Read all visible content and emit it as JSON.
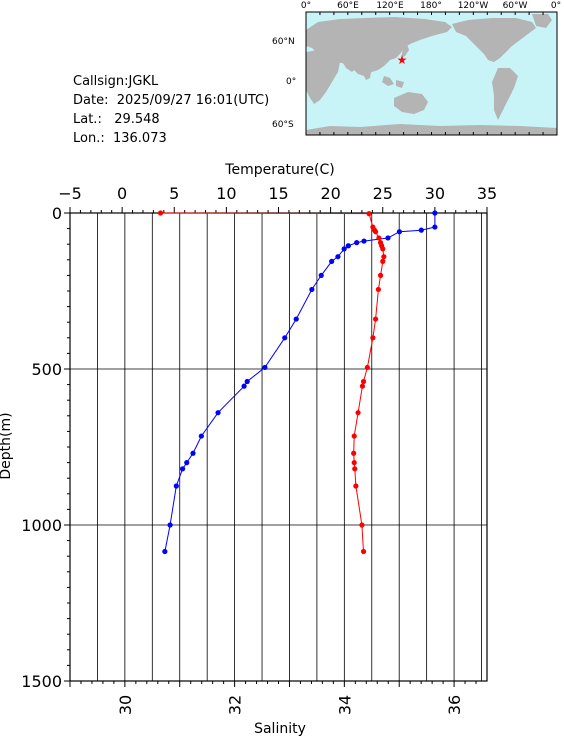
{
  "station": {
    "callsign": "Callsign:JGKL",
    "date": "Date:  2025/09/27 16:01(UTC)",
    "lat": "Lat.:   29.548",
    "lon": "Lon.:  136.073"
  },
  "map": {
    "lon_labels": [
      "0°",
      "60°E",
      "120°E",
      "180°",
      "120°W",
      "60°W",
      "0°"
    ],
    "lat_labels": [
      "60°N",
      "0°",
      "60°S"
    ],
    "ocean_color": "#c8f4f8",
    "land_color": "#b4b4b4",
    "marker_color": "#ff0000",
    "marker": {
      "lat": 29.548,
      "lon": 136.073
    }
  },
  "chart_data": {
    "type": "line",
    "title": "",
    "depth_axis": {
      "label": "Depth(m)",
      "range": [
        0,
        1500
      ],
      "ticks": [
        0,
        500,
        1000,
        1500
      ],
      "inverted": true
    },
    "temperature_axis": {
      "label": "Temperature(C)",
      "range": [
        -5,
        35
      ],
      "ticks": [
        -5,
        0,
        5,
        10,
        15,
        20,
        25,
        30,
        35
      ],
      "position": "top"
    },
    "salinity_axis": {
      "label": "Salinity",
      "range": [
        29,
        36.6
      ],
      "ticks": [
        30,
        32,
        34,
        36
      ],
      "position": "bottom"
    },
    "grid": true,
    "series": [
      {
        "variable": "temperature",
        "color": "#0000ff",
        "points": [
          {
            "depth": 0,
            "value": 30.0
          },
          {
            "depth": 45,
            "value": 30.0
          },
          {
            "depth": 55,
            "value": 28.7
          },
          {
            "depth": 60,
            "value": 26.6
          },
          {
            "depth": 80,
            "value": 25.5
          },
          {
            "depth": 90,
            "value": 23.2
          },
          {
            "depth": 95,
            "value": 22.5
          },
          {
            "depth": 105,
            "value": 21.7
          },
          {
            "depth": 115,
            "value": 21.3
          },
          {
            "depth": 140,
            "value": 20.7
          },
          {
            "depth": 155,
            "value": 20.1
          },
          {
            "depth": 200,
            "value": 19.1
          },
          {
            "depth": 245,
            "value": 18.2
          },
          {
            "depth": 340,
            "value": 16.7
          },
          {
            "depth": 400,
            "value": 15.6
          },
          {
            "depth": 495,
            "value": 13.7
          },
          {
            "depth": 540,
            "value": 12.0
          },
          {
            "depth": 555,
            "value": 11.7
          },
          {
            "depth": 640,
            "value": 9.2
          },
          {
            "depth": 715,
            "value": 7.6
          },
          {
            "depth": 770,
            "value": 6.8
          },
          {
            "depth": 800,
            "value": 6.2
          },
          {
            "depth": 820,
            "value": 5.8
          },
          {
            "depth": 875,
            "value": 5.2
          },
          {
            "depth": 1000,
            "value": 4.6
          },
          {
            "depth": 1085,
            "value": 4.1
          }
        ]
      },
      {
        "variable": "salinity",
        "color": "#ff0000",
        "points": [
          {
            "depth": 0,
            "value": 30.65
          },
          {
            "depth": 2,
            "value": 34.45
          },
          {
            "depth": 45,
            "value": 34.52
          },
          {
            "depth": 55,
            "value": 34.55
          },
          {
            "depth": 60,
            "value": 34.57
          },
          {
            "depth": 80,
            "value": 34.63
          },
          {
            "depth": 95,
            "value": 34.66
          },
          {
            "depth": 105,
            "value": 34.68
          },
          {
            "depth": 115,
            "value": 34.7
          },
          {
            "depth": 140,
            "value": 34.72
          },
          {
            "depth": 155,
            "value": 34.7
          },
          {
            "depth": 200,
            "value": 34.66
          },
          {
            "depth": 245,
            "value": 34.62
          },
          {
            "depth": 340,
            "value": 34.57
          },
          {
            "depth": 400,
            "value": 34.52
          },
          {
            "depth": 495,
            "value": 34.42
          },
          {
            "depth": 540,
            "value": 34.35
          },
          {
            "depth": 555,
            "value": 34.33
          },
          {
            "depth": 640,
            "value": 34.25
          },
          {
            "depth": 715,
            "value": 34.18
          },
          {
            "depth": 770,
            "value": 34.17
          },
          {
            "depth": 800,
            "value": 34.18
          },
          {
            "depth": 820,
            "value": 34.19
          },
          {
            "depth": 875,
            "value": 34.21
          },
          {
            "depth": 1000,
            "value": 34.32
          },
          {
            "depth": 1085,
            "value": 34.35
          }
        ]
      }
    ]
  }
}
